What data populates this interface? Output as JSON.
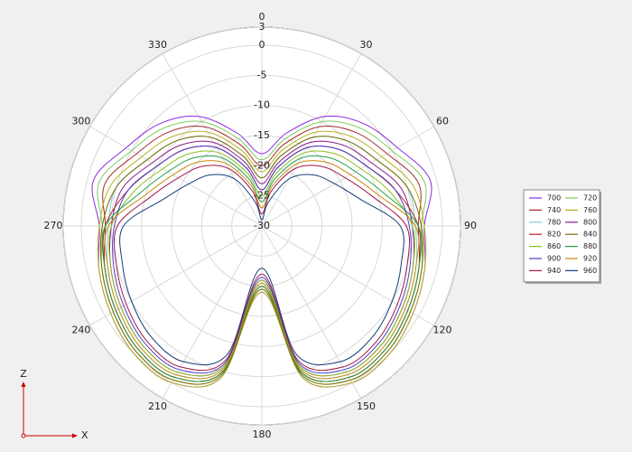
{
  "chart_data": {
    "type": "polar",
    "theta": [
      0,
      15,
      30,
      45,
      60,
      75,
      90,
      105,
      120,
      135,
      150,
      165,
      180,
      195,
      210,
      225,
      240,
      255,
      270,
      285,
      300,
      315,
      330,
      345
    ],
    "thetaticks": [
      0,
      30,
      60,
      90,
      120,
      150,
      180,
      210,
      240,
      270,
      300,
      330
    ],
    "rlim": [
      -30,
      3
    ],
    "rticks": [
      3,
      0,
      -5,
      -10,
      -15,
      -20,
      -25,
      -30
    ],
    "grid": true,
    "legend": "right",
    "series": [
      {
        "name": "700",
        "color": "#8a2be2",
        "values": [
          -18,
          -14,
          -9,
          -6,
          -4,
          -1,
          -3,
          -2,
          -1,
          0,
          0,
          -4,
          -19,
          -4,
          0,
          0,
          -1,
          -2,
          -3,
          -1,
          -4,
          -6,
          -9,
          -14
        ]
      },
      {
        "name": "720",
        "color": "#7ccd5a",
        "values": [
          -19,
          -15,
          -10,
          -7,
          -5,
          -2,
          -3.5,
          -2.5,
          -1.5,
          -0.5,
          -0.5,
          -4.5,
          -19.5,
          -4.5,
          -0.5,
          -0.5,
          -1.5,
          -2.5,
          -3.5,
          -2,
          -5,
          -7,
          -10,
          -15
        ]
      },
      {
        "name": "740",
        "color": "#a52a2a",
        "values": [
          -20,
          -16,
          -11,
          -8,
          -6,
          -3,
          -4,
          -3,
          -2,
          -1,
          -1,
          -5,
          -20,
          -5,
          -1,
          -1,
          -2,
          -3,
          -4,
          -3,
          -6,
          -8,
          -11,
          -16
        ]
      },
      {
        "name": "760",
        "color": "#b8b020",
        "values": [
          -21,
          -17,
          -12,
          -9,
          -7,
          -4,
          -3,
          -2,
          -1,
          0,
          0,
          -4,
          -19,
          -4,
          0,
          0,
          -1,
          -2,
          -3,
          -4,
          -7,
          -9,
          -12,
          -17
        ]
      },
      {
        "name": "780",
        "color": "#7fcfcf",
        "values": [
          -22,
          -18,
          -13,
          -10,
          -8,
          -5,
          -4.5,
          -3.5,
          -2.5,
          -1.5,
          -1.5,
          -5.5,
          -20.5,
          -5.5,
          -1.5,
          -1.5,
          -2.5,
          -3.5,
          -4.5,
          -5,
          -8,
          -10,
          -13,
          -18
        ]
      },
      {
        "name": "800",
        "color": "#8b1a8b",
        "values": [
          -23,
          -19,
          -14,
          -11,
          -9,
          -6,
          -5,
          -4,
          -3,
          -2,
          -2,
          -6,
          -21,
          -6,
          -2,
          -2,
          -3,
          -4,
          -5,
          -6,
          -9,
          -11,
          -14,
          -19
        ]
      },
      {
        "name": "820",
        "color": "#b22222",
        "values": [
          -24,
          -20,
          -15,
          -12,
          -10,
          -7,
          -4,
          -3,
          -2,
          -1,
          -1,
          -5,
          -20,
          -5,
          -1,
          -1,
          -2,
          -3,
          -4,
          -7,
          -10,
          -12,
          -15,
          -20
        ]
      },
      {
        "name": "840",
        "color": "#7a6a00",
        "values": [
          -22,
          -18,
          -13,
          -10,
          -8,
          -5,
          -3.5,
          -2.5,
          -1.5,
          -0.5,
          -0.5,
          -4.5,
          -19.5,
          -4.5,
          -0.5,
          -0.5,
          -1.5,
          -2.5,
          -3.5,
          -5,
          -8,
          -10,
          -13,
          -18
        ]
      },
      {
        "name": "860",
        "color": "#8cc020",
        "values": [
          -25,
          -21,
          -16,
          -13,
          -11,
          -8,
          -5,
          -4,
          -3,
          -2,
          -2,
          -6,
          -21,
          -6,
          -2,
          -2,
          -3,
          -4,
          -5,
          -8,
          -11,
          -13,
          -16,
          -21
        ]
      },
      {
        "name": "880",
        "color": "#22a045",
        "values": [
          -26,
          -22,
          -17,
          -14,
          -12,
          -9,
          -4,
          -3,
          -2,
          -1,
          -1,
          -5,
          -20,
          -5,
          -1,
          -1,
          -2,
          -3,
          -4,
          -9,
          -12,
          -14,
          -17,
          -22
        ]
      },
      {
        "name": "900",
        "color": "#4b3cc8",
        "values": [
          -24,
          -20,
          -15,
          -12,
          -10,
          -7,
          -5.5,
          -4.5,
          -3.5,
          -2.5,
          -2.5,
          -6.5,
          -21.5,
          -6.5,
          -2.5,
          -2.5,
          -3.5,
          -4.5,
          -5.5,
          -7,
          -10,
          -12,
          -15,
          -20
        ]
      },
      {
        "name": "920",
        "color": "#c88a10",
        "values": [
          -27,
          -23,
          -18,
          -15,
          -13,
          -10,
          -4.5,
          -3.5,
          -2.5,
          -1.5,
          -1.5,
          -5.5,
          -20.5,
          -5.5,
          -1.5,
          -1.5,
          -2.5,
          -3.5,
          -4.5,
          -10,
          -13,
          -15,
          -18,
          -23
        ]
      },
      {
        "name": "940",
        "color": "#a0184e",
        "values": [
          -28,
          -24,
          -19,
          -16,
          -14,
          -11,
          -6,
          -5,
          -4,
          -3,
          -3,
          -7,
          -22,
          -7,
          -3,
          -3,
          -4,
          -5,
          -6,
          -11,
          -14,
          -16,
          -19,
          -24
        ]
      },
      {
        "name": "960",
        "color": "#123c78",
        "values": [
          -29,
          -26,
          -21,
          -18,
          -16,
          -13,
          -7,
          -6,
          -5,
          -4,
          -4,
          -8,
          -23,
          -8,
          -4,
          -4,
          -5,
          -6,
          -7,
          -13,
          -16,
          -18,
          -21,
          -26
        ]
      }
    ]
  },
  "axis_gizmo": {
    "vertical": "Z",
    "horizontal": "X"
  }
}
